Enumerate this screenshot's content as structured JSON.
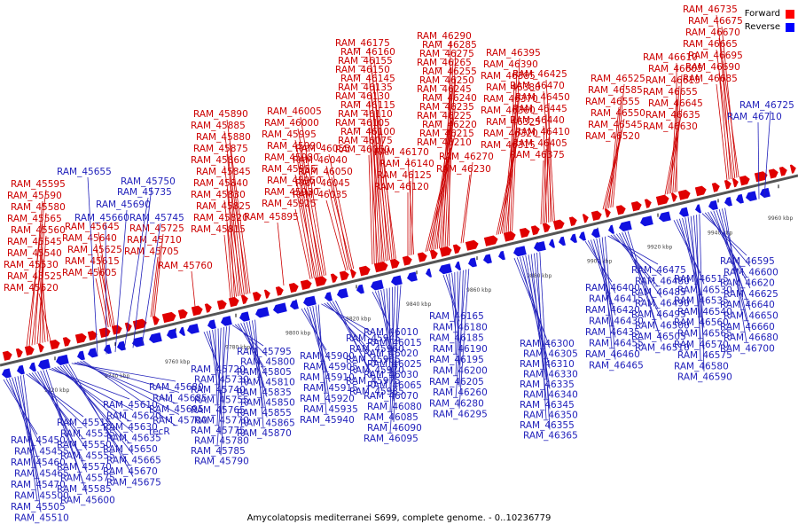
{
  "caption": "Amycolatopsis mediterranei S699, complete genome. - 0..10236779",
  "legend": [
    {
      "label": "Forward",
      "color": "#ff0000"
    },
    {
      "label": "Reverse",
      "color": "#0000ff"
    }
  ],
  "colors": {
    "forward": "#e00000",
    "reverse": "#1010e0",
    "axis": "#555555",
    "forward_text": "#cc0000",
    "reverse_text": "#2222bb"
  },
  "ticks": [
    "9720 kbp",
    "9740 kbp",
    "9760 kbp",
    "9780 kbp",
    "9800 kbp",
    "9820 kbp",
    "9840 kbp",
    "9860 kbp",
    "9880 kbp",
    "9900 kbp",
    "9920 kbp",
    "9940 kbp",
    "9960 kbp"
  ],
  "forward_groups": [
    [
      "RAM_45520",
      "RAM_45525",
      "RAM_45530",
      "RAM_45540",
      "RAM_45545",
      "RAM_45560",
      "RAM_45565",
      "RAM_45580",
      "RAM_45590",
      "RAM_45595"
    ],
    [
      "RAM_45605",
      "RAM_45615",
      "RAM_45625",
      "RAM_45640",
      "RAM_45645"
    ],
    [
      "RAM_45705",
      "RAM_45710",
      "RAM_45725"
    ],
    [
      "RAM_45760"
    ],
    [
      "RAM_45815",
      "RAM_45820",
      "RAM_45825",
      "RAM_45830",
      "RAM_45840",
      "RAM_45845",
      "RAM_45860",
      "RAM_45875",
      "RAM_45880",
      "RAM_45885",
      "RAM_45890"
    ],
    [
      "RAM_45895"
    ],
    [
      "RAM_45925",
      "RAM_45930",
      "RAM_45950",
      "RAM_45955",
      "RAM_45980",
      "RAM_45990",
      "RAM_45995",
      "RAM_46000",
      "RAM_46005"
    ],
    [
      "RAM_46035",
      "RAM_46045",
      "RAM_46050",
      "RAM_46040",
      "RAM_46055"
    ],
    [
      "RAM_46060",
      "RAM_46075",
      "RAM_46100",
      "RAM_46105",
      "RAM_46110",
      "RAM_46115",
      "RAM_46130",
      "RAM_46135",
      "RAM_46145",
      "RAM_46150",
      "RAM_46155",
      "RAM_46160",
      "RAM_46175"
    ],
    [
      "RAM_46120",
      "RAM_46125",
      "RAM_46140",
      "RAM_46170"
    ],
    [
      "RAM_46210",
      "RAM_46215",
      "RAM_46220",
      "RAM_46225",
      "RAM_46235",
      "RAM_46240",
      "RAM_46245",
      "RAM_46250",
      "RAM_46255",
      "RAM_46265",
      "RAM_46275",
      "RAM_46285",
      "RAM_46290"
    ],
    [
      "RAM_46230",
      "RAM_46270"
    ],
    [
      "RAM_46315",
      "RAM_46320",
      "RAM_46325",
      "RAM_46360",
      "RAM_46370",
      "RAM_46380",
      "RAM_46385",
      "RAM_46390",
      "RAM_46395"
    ],
    [
      "RAM_46375",
      "RAM_46405",
      "RAM_46410",
      "RAM_46440",
      "RAM_46445",
      "RAM_46450",
      "RAM_46470",
      "RAM_46425"
    ],
    [
      "RAM_46520",
      "RAM_46545",
      "RAM_46550",
      "RAM_46555",
      "RAM_46585",
      "RAM_46525"
    ],
    [
      "RAM_46630",
      "RAM_46635",
      "RAM_46645",
      "RAM_46655",
      "RAM_46615",
      "RAM_46605",
      "RAM_46610"
    ],
    [
      "RAM_46685",
      "RAM_46690",
      "RAM_46695",
      "RAM_46665",
      "RAM_46670",
      "RAM_46675",
      "RAM_46735"
    ]
  ],
  "reverse_groups_upper": [
    [
      "RAM_45655",
      "RAM_45660",
      "RAM_45690",
      "RAM_45735",
      "RAM_45750",
      "RAM_45745"
    ],
    [
      "RAM_46710",
      "RAM_46725"
    ]
  ],
  "reverse_groups_lower": [
    [
      "RAM_45450",
      "RAM_45455",
      "RAM_45460",
      "RAM_45465",
      "RAM_45470",
      "RAM_45500",
      "RAM_45505",
      "RAM_45510",
      "RAM_45515",
      "RAM_45535",
      "RAM_45550",
      "RAM_45555",
      "RAM_45570",
      "RAM_45575",
      "RAM_45585",
      "RAM_45600",
      "RAM_45610",
      "RAM_45620",
      "RAM_45630",
      "RAM_45635",
      "RAM_45650",
      "RAM_45665",
      "RAM_45670",
      "RAM_45675",
      "RAM_45680",
      "RAM_45685",
      "RAM_45695",
      "RAM_45700",
      "recR"
    ],
    [
      "RAM_45720",
      "RAM_45730",
      "RAM_45740",
      "RAM_45755",
      "RAM_45765",
      "RAM_45770",
      "RAM_45775",
      "RAM_45780",
      "RAM_45785",
      "RAM_45790",
      "RAM_45795",
      "RAM_45800",
      "RAM_45805",
      "RAM_45810",
      "RAM_45835",
      "RAM_45850",
      "RAM_45855",
      "RAM_45865",
      "RAM_45870"
    ],
    [
      "RAM_45900",
      "RAM_45905",
      "RAM_45910",
      "RAM_45915",
      "RAM_45920",
      "RAM_45935",
      "RAM_45940",
      "RAM_45945",
      "RAM_45960",
      "RAM_45965",
      "RAM_45970",
      "RAM_45975",
      "RAM_45985"
    ],
    [
      "RAM_46010",
      "RAM_46015",
      "RAM_46020",
      "RAM_46025",
      "RAM_46030",
      "RAM_46065",
      "RAM_46070",
      "RAM_46080",
      "RAM_46085",
      "RAM_46090",
      "RAM_46095"
    ],
    [
      "RAM_46165",
      "RAM_46180",
      "RAM_46185",
      "RAM_46190",
      "RAM_46195",
      "RAM_46200",
      "RAM_46205",
      "RAM_46260",
      "RAM_46280",
      "RAM_46295"
    ],
    [
      "RAM_46300",
      "RAM_46305",
      "RAM_46310",
      "RAM_46330",
      "RAM_46335",
      "RAM_46340",
      "RAM_46345",
      "RAM_46350",
      "RAM_46355",
      "RAM_46365"
    ],
    [
      "RAM_46400",
      "RAM_46415",
      "RAM_46420",
      "RAM_46430",
      "RAM_46435",
      "RAM_46455",
      "RAM_46460",
      "RAM_46465",
      "RAM_46475",
      "RAM_46480",
      "RAM_46485",
      "RAM_46490",
      "RAM_46495",
      "RAM_46500",
      "RAM_46505",
      "RAM_46510"
    ],
    [
      "RAM_46515",
      "RAM_46530",
      "RAM_46535",
      "RAM_46540",
      "RAM_46560",
      "RAM_46565",
      "RAM_46570",
      "RAM_46575",
      "RAM_46580",
      "RAM_46590",
      "RAM_46595",
      "RAM_46600",
      "RAM_46620",
      "RAM_46625",
      "RAM_46640",
      "RAM_46650",
      "RAM_46660",
      "RAM_46680",
      "RAM_46700"
    ]
  ]
}
